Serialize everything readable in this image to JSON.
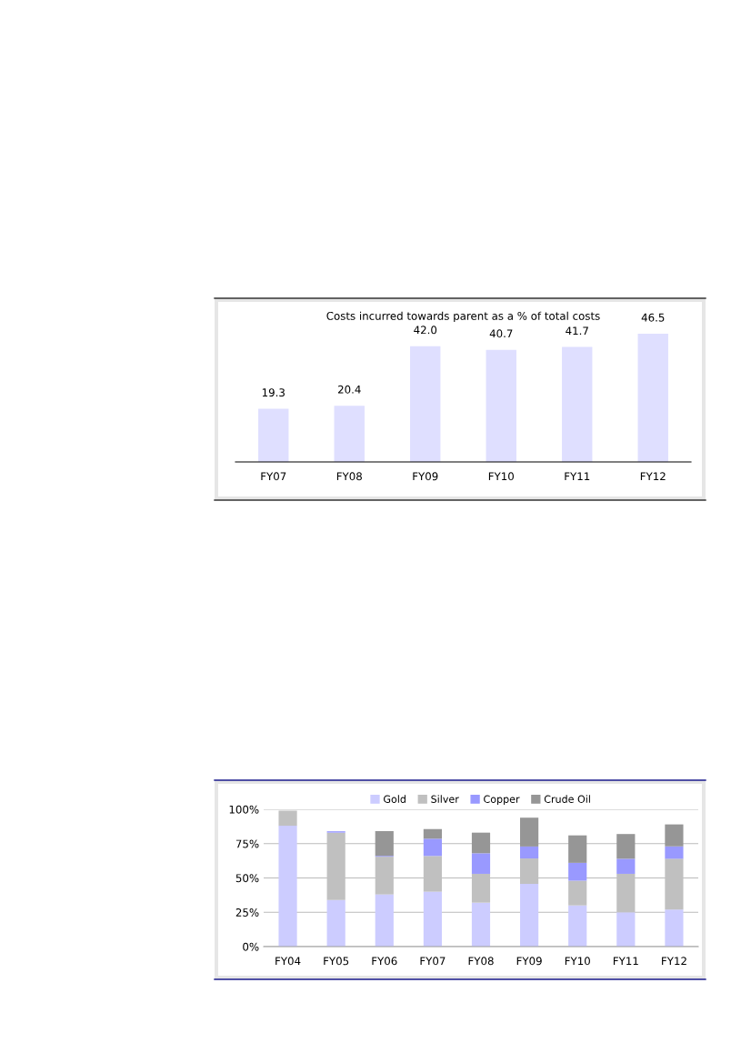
{
  "chart_data": [
    {
      "type": "bar",
      "title": "Costs incurred towards parent as a % of total costs",
      "categories": [
        "FY07",
        "FY08",
        "FY09",
        "FY10",
        "FY11",
        "FY12"
      ],
      "values": [
        19.3,
        20.4,
        42.0,
        40.7,
        41.7,
        46.5
      ],
      "color": "#dfdfff",
      "value_labels": [
        "19.3",
        "20.4",
        "42.0",
        "40.7",
        "41.7",
        "46.5"
      ],
      "grid": false,
      "legend": false
    },
    {
      "type": "bar",
      "stacked": true,
      "categories": [
        "FY04",
        "FY05",
        "FY06",
        "FY07",
        "FY08",
        "FY09",
        "FY10",
        "FY11",
        "FY12"
      ],
      "series": [
        {
          "name": "Gold",
          "color": "#ccccff",
          "values": [
            88,
            34,
            38,
            40,
            32,
            45.7,
            30,
            25,
            27
          ]
        },
        {
          "name": "Silver",
          "color": "#c0c0c0",
          "values": [
            11,
            49,
            27.5,
            26,
            21,
            18.5,
            18,
            28,
            37
          ]
        },
        {
          "name": "Copper",
          "color": "#9999ff",
          "values": [
            0,
            1,
            0.6,
            12.6,
            15,
            8.7,
            13,
            11,
            9
          ]
        },
        {
          "name": "Crude Oil",
          "color": "#969696",
          "values": [
            0,
            0,
            18,
            7,
            15,
            21,
            20,
            18,
            16
          ]
        }
      ],
      "ylim": [
        0,
        100
      ],
      "yticks": [
        {
          "value": 0,
          "label": "0%"
        },
        {
          "value": 25,
          "label": "25%"
        },
        {
          "value": 50,
          "label": "50%"
        },
        {
          "value": 75,
          "label": "75%"
        },
        {
          "value": 100,
          "label": "100%"
        }
      ],
      "grid": "y",
      "legend": "top"
    }
  ]
}
